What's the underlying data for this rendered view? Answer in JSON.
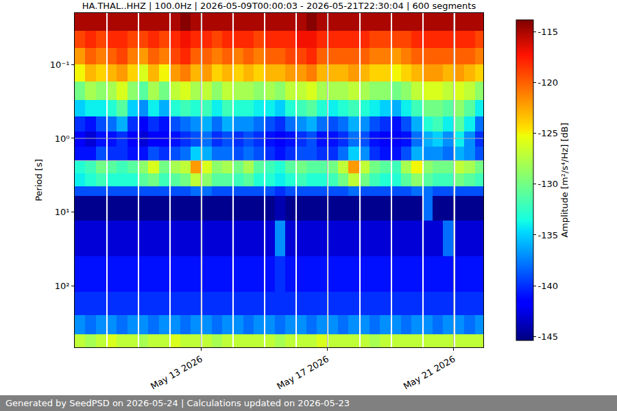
{
  "chart_data": {
    "type": "heatmap",
    "title": "HA.THAL..HHZ | 100.0Hz | 2026-05-09T00:00:03 - 2026-05-21T22:30:04 | 600 segments",
    "ylabel": "Period [s]",
    "colorbar_label": "Amplitude [m²/s⁴/Hz] [dB]",
    "footer": "Generated by SeedPSD on 2026-05-24 | Calculations updated on 2026-05-23",
    "log": "y",
    "grid": true,
    "xlim": [
      "2026-05-09 00:00:03",
      "2026-05-21 22:30:04"
    ],
    "xticks": [
      {
        "value": "2026-05-13",
        "label": "May 13 2026"
      },
      {
        "value": "2026-05-17",
        "label": "May 17 2026"
      },
      {
        "value": "2026-05-21",
        "label": "May 21 2026"
      }
    ],
    "ylim": [
      680,
      0.02
    ],
    "yticks": [
      {
        "value": 0.1,
        "label": "10⁻¹"
      },
      {
        "value": 1,
        "label": "10⁰"
      },
      {
        "value": 10,
        "label": "10¹"
      },
      {
        "value": 100,
        "label": "10²"
      }
    ],
    "zlim": [
      -145.4,
      -113.8
    ],
    "zticks": [
      -145,
      -140,
      -135,
      -130,
      -125,
      -120,
      -115
    ],
    "x": [
      "2026-05-09 00:00",
      "2026-05-09 08:00",
      "2026-05-09 16:00",
      "2026-05-10 00:00",
      "2026-05-10 01:00",
      "2026-05-10 08:00",
      "2026-05-10 16:00",
      "2026-05-11 00:00",
      "2026-05-11 01:00",
      "2026-05-11 08:00",
      "2026-05-11 16:00",
      "2026-05-12 00:00",
      "2026-05-12 01:00",
      "2026-05-12 08:00",
      "2026-05-12 16:00",
      "2026-05-13 00:00",
      "2026-05-13 01:00",
      "2026-05-13 08:00",
      "2026-05-13 16:00",
      "2026-05-14 00:00",
      "2026-05-14 01:00",
      "2026-05-14 08:00",
      "2026-05-14 16:00",
      "2026-05-15 00:00",
      "2026-05-15 01:00",
      "2026-05-15 08:00",
      "2026-05-15 16:00",
      "2026-05-16 00:00",
      "2026-05-16 01:00",
      "2026-05-16 08:00",
      "2026-05-16 16:00",
      "2026-05-17 00:00",
      "2026-05-17 01:00",
      "2026-05-17 08:00",
      "2026-05-17 16:00",
      "2026-05-18 00:00",
      "2026-05-18 01:00",
      "2026-05-18 08:00",
      "2026-05-18 16:00",
      "2026-05-19 00:00",
      "2026-05-19 01:00",
      "2026-05-19 08:00",
      "2026-05-19 16:00",
      "2026-05-20 00:00",
      "2026-05-20 01:00",
      "2026-05-20 08:00",
      "2026-05-20 16:00",
      "2026-05-21 00:00",
      "2026-05-21 01:00",
      "2026-05-21 08:00",
      "2026-05-21 16:00",
      "2026-05-21 22:30"
    ],
    "y": [
      0.02,
      0.035,
      0.06,
      0.1,
      0.17,
      0.3,
      0.5,
      0.8,
      1.3,
      2,
      3,
      4.5,
      6,
      13,
      40,
      120,
      250,
      450,
      680
    ],
    "cells": [
      [
        -115,
        -119,
        -122,
        -125,
        -130,
        -135,
        -140,
        -142,
        -141,
        -133,
        -134,
        -139,
        -145,
        -143,
        -141,
        -140,
        -137,
        -127
      ],
      [
        -115,
        -118,
        -120,
        -123,
        -128,
        -134,
        -141,
        -143,
        -141,
        -132,
        -133,
        -139,
        -145,
        -143,
        -141,
        -140,
        -138,
        -128
      ],
      [
        -115,
        -119,
        -121,
        -124,
        -129,
        -134,
        -139,
        -141,
        -139,
        -130,
        -132,
        -139,
        -145,
        -143,
        -141,
        -140,
        -137,
        -127
      ],
      [
        null,
        null,
        null,
        null,
        null,
        null,
        null,
        null,
        null,
        null,
        null,
        null,
        null,
        null,
        null,
        null,
        null,
        null
      ],
      [
        -115,
        -118,
        -120,
        -123,
        -128,
        -133,
        -138,
        -141,
        -140,
        -131,
        -133,
        -139,
        -145,
        -143,
        -141,
        -140,
        -137,
        -126
      ],
      [
        -115,
        -118,
        -119,
        -122,
        -126,
        -131,
        -136,
        -140,
        -140,
        -132,
        -133,
        -139,
        -145,
        -143,
        -141,
        -140,
        -138,
        -127
      ],
      [
        -115,
        -119,
        -121,
        -124,
        -129,
        -135,
        -140,
        -142,
        -141,
        -131,
        -133,
        -139,
        -145,
        -143,
        -141,
        -140,
        -137,
        -127
      ],
      [
        null,
        null,
        null,
        null,
        null,
        null,
        null,
        null,
        null,
        null,
        null,
        null,
        null,
        null,
        null,
        null,
        null,
        null
      ],
      [
        -115,
        -119,
        -122,
        -126,
        -131,
        -137,
        -142,
        -143,
        -141,
        -129,
        -131,
        -139,
        -145,
        -143,
        -141,
        -140,
        -137,
        -128
      ],
      [
        -115,
        -118,
        -120,
        -123,
        -128,
        -134,
        -140,
        -142,
        -139,
        -126,
        -130,
        -139,
        -145,
        -143,
        -141,
        -140,
        -138,
        -127
      ],
      [
        -115,
        -119,
        -121,
        -125,
        -130,
        -136,
        -141,
        -142,
        -140,
        -130,
        -132,
        -139,
        -145,
        -143,
        -141,
        -140,
        -137,
        -127
      ],
      [
        null,
        null,
        null,
        null,
        null,
        null,
        null,
        null,
        null,
        null,
        null,
        null,
        null,
        null,
        null,
        null,
        null,
        null
      ],
      [
        -115,
        -118,
        -119,
        -122,
        -127,
        -133,
        -139,
        -141,
        -139,
        -128,
        -131,
        -139,
        -145,
        -143,
        -141,
        -140,
        -137,
        -126
      ],
      [
        -114,
        -117,
        -118,
        -121,
        -126,
        -132,
        -138,
        -140,
        -138,
        -127,
        -130,
        -139,
        -145,
        -143,
        -141,
        -140,
        -138,
        -127
      ],
      [
        -115,
        -118,
        -120,
        -123,
        -128,
        -133,
        -137,
        -139,
        -135,
        -122,
        -127,
        -138,
        -145,
        -143,
        -141,
        -140,
        -137,
        -127
      ],
      [
        null,
        null,
        null,
        null,
        null,
        null,
        null,
        null,
        null,
        null,
        null,
        null,
        null,
        null,
        null,
        null,
        null,
        null
      ],
      [
        -115,
        -118,
        -120,
        -122,
        -127,
        -132,
        -136,
        -138,
        -136,
        -126,
        -129,
        -138,
        -145,
        -143,
        -141,
        -140,
        -137,
        -127
      ],
      [
        -115,
        -119,
        -121,
        -124,
        -129,
        -134,
        -138,
        -140,
        -138,
        -129,
        -131,
        -139,
        -145,
        -143,
        -141,
        -140,
        -138,
        -128
      ],
      [
        -115,
        -118,
        -120,
        -123,
        -127,
        -132,
        -136,
        -139,
        -138,
        -128,
        -131,
        -139,
        -145,
        -143,
        -141,
        -140,
        -137,
        -127
      ],
      [
        null,
        null,
        null,
        null,
        null,
        null,
        null,
        null,
        null,
        null,
        null,
        null,
        null,
        null,
        null,
        null,
        null,
        null
      ],
      [
        -115,
        -118,
        -121,
        -124,
        -128,
        -133,
        -137,
        -140,
        -139,
        -130,
        -132,
        -139,
        -145,
        -143,
        -141,
        -140,
        -137,
        -127
      ],
      [
        -115,
        -118,
        -120,
        -123,
        -128,
        -133,
        -137,
        -139,
        -138,
        -128,
        -131,
        -139,
        -145,
        -143,
        -141,
        -140,
        -138,
        -127
      ],
      [
        -115,
        -119,
        -121,
        -124,
        -129,
        -134,
        -138,
        -140,
        -139,
        -131,
        -133,
        -139,
        -145,
        -143,
        -141,
        -140,
        -137,
        -127
      ],
      [
        null,
        null,
        null,
        null,
        null,
        null,
        null,
        null,
        null,
        null,
        null,
        null,
        null,
        null,
        null,
        null,
        null,
        null
      ],
      [
        -115,
        -118,
        -120,
        -123,
        -128,
        -134,
        -139,
        -141,
        -140,
        -132,
        -133,
        -139,
        -145,
        -143,
        -141,
        -140,
        -137,
        -127
      ],
      [
        -115,
        -118,
        -120,
        -123,
        -129,
        -135,
        -140,
        -142,
        -141,
        -133,
        -134,
        -140,
        -144,
        -137,
        -140,
        -140,
        -138,
        -128
      ],
      [
        -115,
        -118,
        -119,
        -122,
        -127,
        -133,
        -138,
        -141,
        -140,
        -131,
        -133,
        -139,
        -145,
        -143,
        -141,
        -140,
        -137,
        -127
      ],
      [
        null,
        null,
        null,
        null,
        null,
        null,
        null,
        null,
        null,
        null,
        null,
        null,
        null,
        null,
        null,
        null,
        null,
        null
      ],
      [
        -115,
        -117,
        -119,
        -122,
        -127,
        -132,
        -137,
        -140,
        -139,
        -130,
        -132,
        -139,
        -145,
        -143,
        -141,
        -140,
        -137,
        -127
      ],
      [
        -114,
        -117,
        -118,
        -121,
        -126,
        -131,
        -136,
        -139,
        -139,
        -131,
        -133,
        -139,
        -145,
        -143,
        -141,
        -140,
        -138,
        -127
      ],
      [
        -115,
        -118,
        -120,
        -123,
        -128,
        -133,
        -138,
        -141,
        -140,
        -131,
        -133,
        -139,
        -145,
        -143,
        -141,
        -140,
        -137,
        -126
      ],
      [
        null,
        null,
        null,
        null,
        null,
        null,
        null,
        null,
        null,
        null,
        null,
        null,
        null,
        null,
        null,
        null,
        null,
        null
      ],
      [
        -115,
        -118,
        -120,
        -123,
        -128,
        -134,
        -139,
        -141,
        -140,
        -130,
        -132,
        -139,
        -145,
        -143,
        -141,
        -140,
        -137,
        -127
      ],
      [
        -115,
        -118,
        -120,
        -123,
        -128,
        -133,
        -138,
        -140,
        -138,
        -127,
        -130,
        -139,
        -145,
        -143,
        -141,
        -140,
        -138,
        -127
      ],
      [
        -115,
        -118,
        -120,
        -122,
        -127,
        -132,
        -136,
        -138,
        -135,
        -122,
        -127,
        -138,
        -145,
        -143,
        -141,
        -140,
        -137,
        -127
      ],
      [
        null,
        null,
        null,
        null,
        null,
        null,
        null,
        null,
        null,
        null,
        null,
        null,
        null,
        null,
        null,
        null,
        null,
        null
      ],
      [
        -115,
        -118,
        -120,
        -123,
        -128,
        -133,
        -137,
        -139,
        -137,
        -127,
        -130,
        -139,
        -145,
        -143,
        -141,
        -140,
        -137,
        -127
      ],
      [
        -115,
        -119,
        -121,
        -124,
        -129,
        -134,
        -139,
        -141,
        -140,
        -130,
        -132,
        -139,
        -145,
        -143,
        -141,
        -140,
        -138,
        -128
      ],
      [
        -115,
        -119,
        -121,
        -124,
        -129,
        -135,
        -140,
        -142,
        -141,
        -131,
        -133,
        -139,
        -145,
        -143,
        -141,
        -140,
        -137,
        -127
      ],
      [
        null,
        null,
        null,
        null,
        null,
        null,
        null,
        null,
        null,
        null,
        null,
        null,
        null,
        null,
        null,
        null,
        null,
        null
      ],
      [
        -115,
        -119,
        -122,
        -125,
        -130,
        -136,
        -141,
        -142,
        -141,
        -132,
        -133,
        -139,
        -145,
        -143,
        -141,
        -140,
        -137,
        -127
      ],
      [
        -115,
        -119,
        -121,
        -124,
        -129,
        -134,
        -139,
        -141,
        -139,
        -128,
        -131,
        -139,
        -145,
        -143,
        -141,
        -140,
        -138,
        -127
      ],
      [
        -115,
        -118,
        -120,
        -123,
        -127,
        -132,
        -136,
        -138,
        -136,
        -125,
        -129,
        -138,
        -145,
        -143,
        -141,
        -140,
        -137,
        -127
      ],
      [
        null,
        null,
        null,
        null,
        null,
        null,
        null,
        null,
        null,
        null,
        null,
        null,
        null,
        null,
        null,
        null,
        null,
        null
      ],
      [
        -115,
        -118,
        -120,
        -122,
        -126,
        -130,
        -133,
        -136,
        -137,
        -129,
        -131,
        -138,
        -138,
        -143,
        -141,
        -140,
        -137,
        -127
      ],
      [
        -115,
        -118,
        -120,
        -122,
        -126,
        -130,
        -132,
        -135,
        -137,
        -130,
        -132,
        -139,
        -145,
        -143,
        -141,
        -140,
        -138,
        -127
      ],
      [
        -115,
        -118,
        -120,
        -123,
        -127,
        -131,
        -134,
        -137,
        -138,
        -130,
        -132,
        -139,
        -145,
        -138,
        -141,
        -140,
        -137,
        -127
      ],
      [
        null,
        null,
        null,
        null,
        null,
        null,
        null,
        null,
        null,
        null,
        null,
        null,
        null,
        null,
        null,
        null,
        null,
        null
      ],
      [
        -115,
        -118,
        -120,
        -122,
        -126,
        -129,
        -131,
        -134,
        -136,
        -127,
        -130,
        -139,
        -145,
        -143,
        -141,
        -140,
        -137,
        -127
      ],
      [
        -115,
        -118,
        -120,
        -123,
        -127,
        -131,
        -134,
        -137,
        -137,
        -128,
        -131,
        -139,
        -145,
        -143,
        -141,
        -140,
        -138,
        -127
      ],
      [
        -115,
        -119,
        -121,
        -124,
        -129,
        -134,
        -138,
        -140,
        -139,
        -130,
        -132,
        -139,
        -145,
        -143,
        -141,
        -140,
        -137,
        -127
      ]
    ]
  }
}
